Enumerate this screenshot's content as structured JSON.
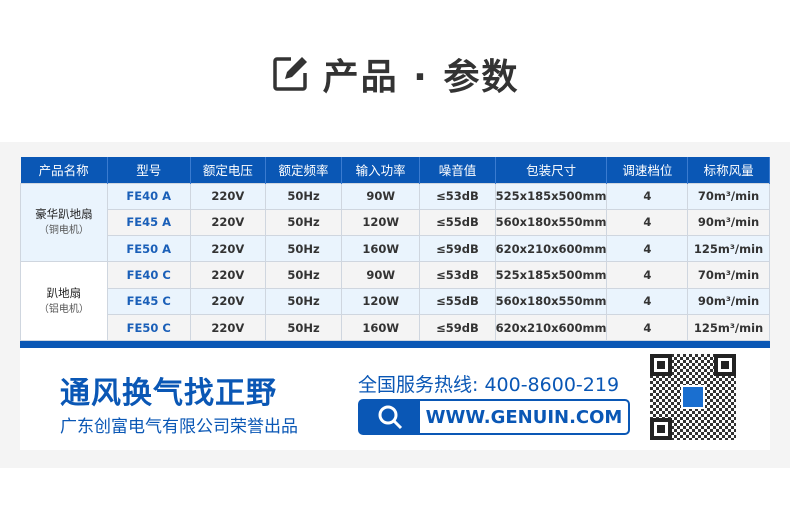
{
  "title": {
    "icon": "edit-icon",
    "text": "产品 · 参数"
  },
  "table": {
    "headers": [
      "产品名称",
      "型号",
      "额定电压",
      "额定频率",
      "输入功率",
      "噪音值",
      "包装尺寸",
      "调速档位",
      "标称风量"
    ],
    "groups": [
      {
        "name": "豪华趴地扇",
        "sub": "（铜电机）"
      },
      {
        "name": "趴地扇",
        "sub": "（铝电机）"
      }
    ],
    "rows": [
      [
        "FE40 A",
        "220V",
        "50Hz",
        "90W",
        "≤53dB",
        "525x185x500mm",
        "4",
        "70m³/min"
      ],
      [
        "FE45 A",
        "220V",
        "50Hz",
        "120W",
        "≤55dB",
        "560x180x550mm",
        "4",
        "90m³/min"
      ],
      [
        "FE50 A",
        "220V",
        "50Hz",
        "160W",
        "≤59dB",
        "620x210x600mm",
        "4",
        "125m³/min"
      ],
      [
        "FE40 C",
        "220V",
        "50Hz",
        "90W",
        "≤53dB",
        "525x185x500mm",
        "4",
        "70m³/min"
      ],
      [
        "FE45 C",
        "220V",
        "50Hz",
        "120W",
        "≤55dB",
        "560x180x550mm",
        "4",
        "90m³/min"
      ],
      [
        "FE50 C",
        "220V",
        "50Hz",
        "160W",
        "≤59dB",
        "620x210x600mm",
        "4",
        "125m³/min"
      ]
    ]
  },
  "banner": {
    "slogan": "通风换气找正野",
    "company": "广东创富电气有限公司荣誉出品",
    "hotline": "全国服务热线: 400-8600-219",
    "url": "WWW.GENUIN.COM",
    "search_icon": "search-icon",
    "qr_logo": "GENUIN"
  },
  "colors": {
    "brand": "#0a57b5",
    "row_alt": "#eaf4fd"
  }
}
